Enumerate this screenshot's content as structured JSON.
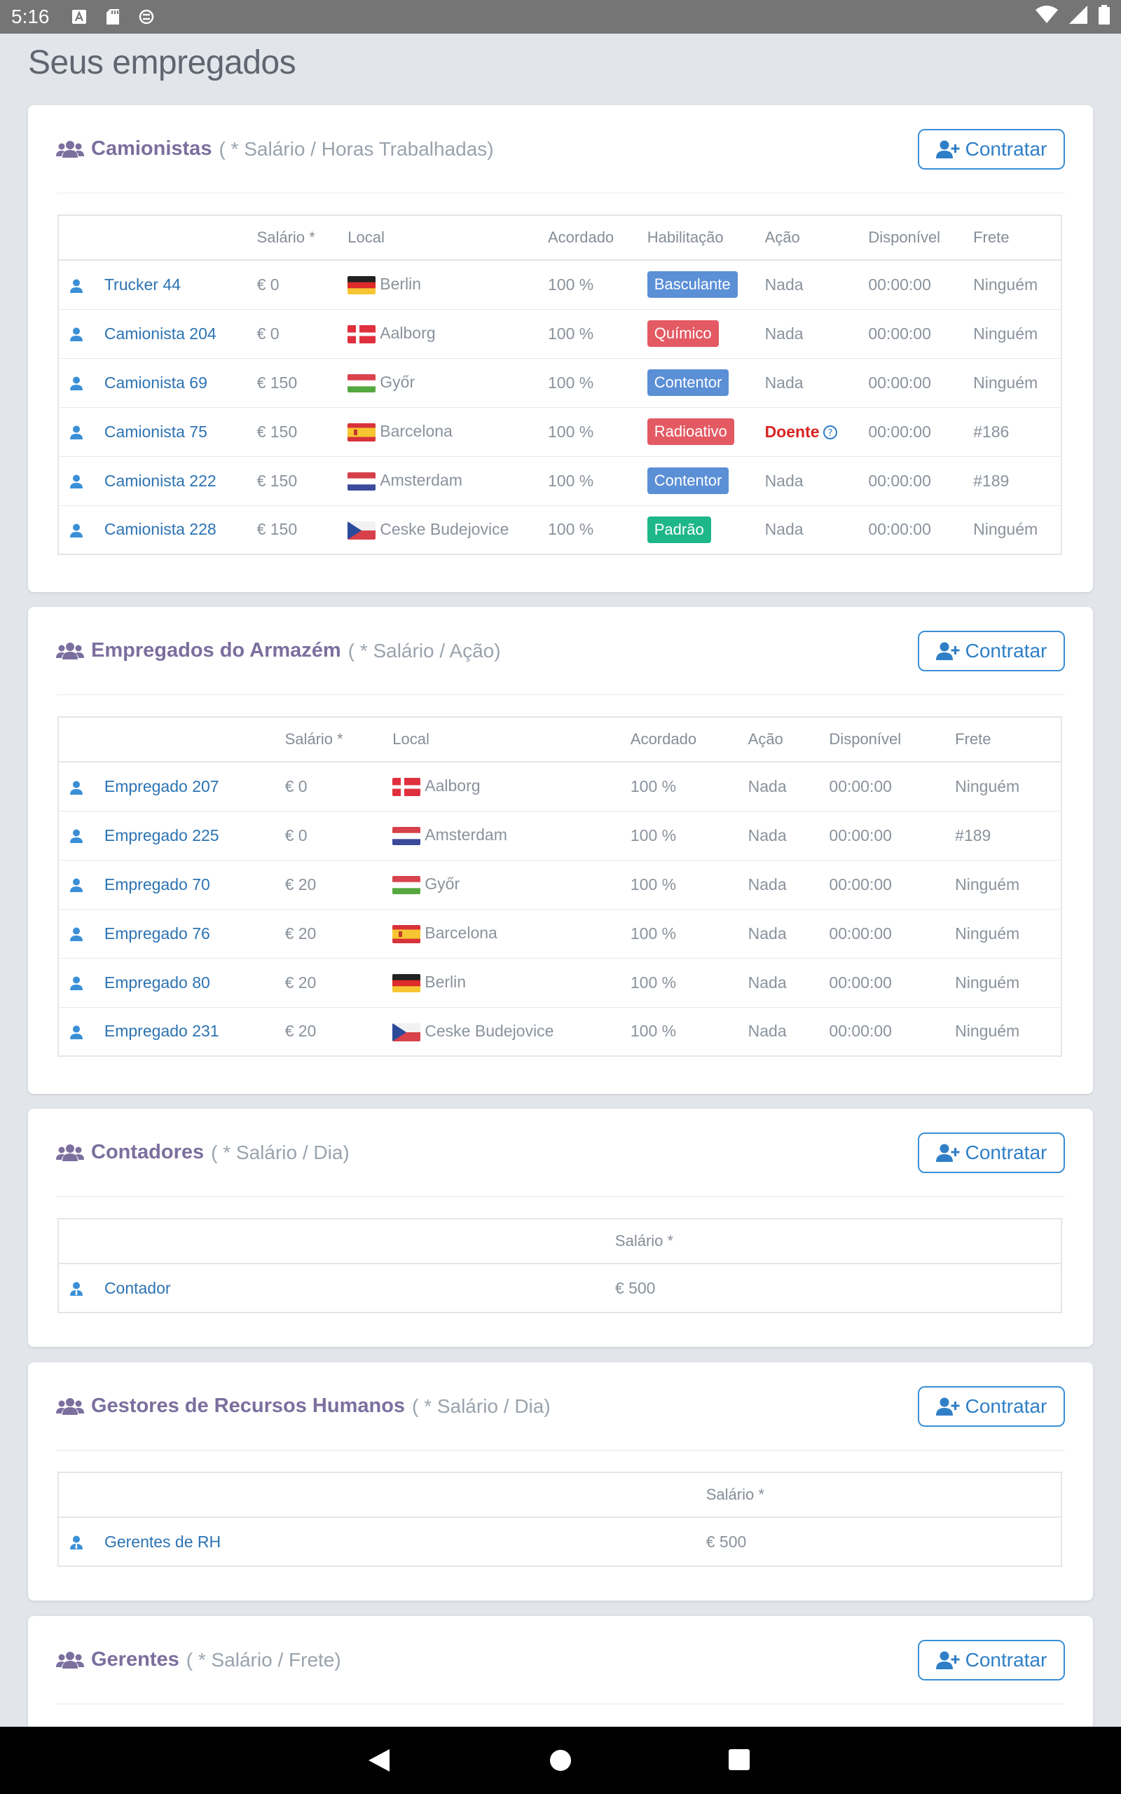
{
  "status_bar": {
    "time": "5:16"
  },
  "page_title": "Seus empregados",
  "hire_label": "Contratar",
  "colors": {
    "blue": "#5b8fd6",
    "red": "#e45a63",
    "green": "#1eb789"
  },
  "sections": {
    "truckers": {
      "title": "Camionistas",
      "subtitle": "( * Salário / Horas Trabalhadas)",
      "headers": [
        "Salário *",
        "Local",
        "Acordado",
        "Habilitação",
        "Ação",
        "Disponível",
        "Frete"
      ],
      "rows": [
        {
          "name": "Trucker 44",
          "salary": "€ 0",
          "flag": "germany",
          "location": "Berlin",
          "agreed": "100 %",
          "license": "Basculante",
          "license_color": "blue",
          "action": "Nada",
          "available": "00:00:00",
          "freight": "Ninguém"
        },
        {
          "name": "Camionista 204",
          "salary": "€ 0",
          "flag": "denmark",
          "location": "Aalborg",
          "agreed": "100 %",
          "license": "Químico",
          "license_color": "red",
          "action": "Nada",
          "available": "00:00:00",
          "freight": "Ninguém"
        },
        {
          "name": "Camionista 69",
          "salary": "€ 150",
          "flag": "hungary",
          "location": "Győr",
          "agreed": "100 %",
          "license": "Contentor",
          "license_color": "blue",
          "action": "Nada",
          "available": "00:00:00",
          "freight": "Ninguém"
        },
        {
          "name": "Camionista 75",
          "salary": "€ 150",
          "flag": "spain",
          "location": "Barcelona",
          "agreed": "100 %",
          "license": "Radioativo",
          "license_color": "red",
          "action": "Doente",
          "available": "00:00:00",
          "freight": "#186"
        },
        {
          "name": "Camionista 222",
          "salary": "€ 150",
          "flag": "netherlands",
          "location": "Amsterdam",
          "agreed": "100 %",
          "license": "Contentor",
          "license_color": "blue",
          "action": "Nada",
          "available": "00:00:00",
          "freight": "#189"
        },
        {
          "name": "Camionista 228",
          "salary": "€ 150",
          "flag": "czech",
          "location": "Ceske Budejovice",
          "agreed": "100 %",
          "license": "Padrão",
          "license_color": "green",
          "action": "Nada",
          "available": "00:00:00",
          "freight": "Ninguém"
        }
      ]
    },
    "warehouse": {
      "title": "Empregados do Armazém",
      "subtitle": "( * Salário / Ação)",
      "headers": [
        "Salário *",
        "Local",
        "Acordado",
        "Ação",
        "Disponível",
        "Frete"
      ],
      "rows": [
        {
          "name": "Empregado 207",
          "salary": "€ 0",
          "flag": "denmark",
          "location": "Aalborg",
          "agreed": "100 %",
          "action": "Nada",
          "available": "00:00:00",
          "freight": "Ninguém"
        },
        {
          "name": "Empregado 225",
          "salary": "€ 0",
          "flag": "netherlands",
          "location": "Amsterdam",
          "agreed": "100 %",
          "action": "Nada",
          "available": "00:00:00",
          "freight": "#189"
        },
        {
          "name": "Empregado 70",
          "salary": "€ 20",
          "flag": "hungary",
          "location": "Győr",
          "agreed": "100 %",
          "action": "Nada",
          "available": "00:00:00",
          "freight": "Ninguém"
        },
        {
          "name": "Empregado 76",
          "salary": "€ 20",
          "flag": "spain",
          "location": "Barcelona",
          "agreed": "100 %",
          "action": "Nada",
          "available": "00:00:00",
          "freight": "Ninguém"
        },
        {
          "name": "Empregado 80",
          "salary": "€ 20",
          "flag": "germany",
          "location": "Berlin",
          "agreed": "100 %",
          "action": "Nada",
          "available": "00:00:00",
          "freight": "Ninguém"
        },
        {
          "name": "Empregado 231",
          "salary": "€ 20",
          "flag": "czech",
          "location": "Ceske Budejovice",
          "agreed": "100 %",
          "action": "Nada",
          "available": "00:00:00",
          "freight": "Ninguém"
        }
      ]
    },
    "accountants": {
      "title": "Contadores",
      "subtitle": "( * Salário / Dia)",
      "header": "Salário *",
      "row": {
        "name": "Contador",
        "salary": "€ 500"
      }
    },
    "hr": {
      "title": "Gestores de Recursos Humanos",
      "subtitle": "( * Salário / Dia)",
      "header": "Salário *",
      "row": {
        "name": "Gerentes de RH",
        "salary": "€ 500"
      }
    },
    "managers": {
      "title": "Gerentes",
      "subtitle": "( * Salário / Frete)"
    }
  }
}
